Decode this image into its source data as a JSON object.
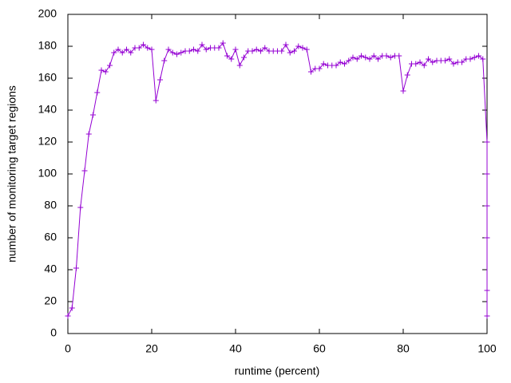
{
  "chart_data": {
    "type": "line",
    "xlabel": "runtime (percent)",
    "ylabel": "number of monitoring target regions",
    "x": [
      0,
      1,
      2,
      3,
      4,
      5,
      6,
      7,
      8,
      9,
      10,
      11,
      12,
      13,
      14,
      15,
      16,
      17,
      18,
      19,
      20,
      21,
      22,
      23,
      24,
      25,
      26,
      27,
      28,
      29,
      30,
      31,
      32,
      33,
      34,
      35,
      36,
      37,
      38,
      39,
      40,
      41,
      42,
      43,
      44,
      45,
      46,
      47,
      48,
      49,
      50,
      51,
      52,
      53,
      54,
      55,
      56,
      57,
      58,
      59,
      60,
      61,
      62,
      63,
      64,
      65,
      66,
      67,
      68,
      69,
      70,
      71,
      72,
      73,
      74,
      75,
      76,
      77,
      78,
      79,
      80,
      81,
      82,
      83,
      84,
      85,
      86,
      87,
      88,
      89,
      90,
      91,
      92,
      93,
      94,
      95,
      96,
      97,
      98,
      99,
      100,
      100,
      100,
      100,
      100,
      100
    ],
    "series": [
      {
        "color": "#9400d3",
        "values": [
          11,
          16,
          41,
          79,
          102,
          125,
          137,
          151,
          165,
          164,
          168,
          176,
          178,
          176,
          178,
          176,
          179,
          179,
          181,
          179,
          178,
          146,
          159,
          171,
          178,
          176,
          175,
          176,
          177,
          177,
          178,
          177,
          181,
          178,
          179,
          179,
          179,
          182,
          174,
          172,
          178,
          168,
          173,
          177,
          177,
          178,
          177,
          179,
          177,
          177,
          177,
          177,
          181,
          176,
          177,
          180,
          179,
          178,
          164,
          166,
          166,
          169,
          168,
          168,
          168,
          170,
          169,
          171,
          173,
          172,
          174,
          173,
          172,
          174,
          172,
          174,
          174,
          173,
          174,
          174,
          152,
          162,
          169,
          169,
          170,
          168,
          172,
          170,
          171,
          171,
          171,
          172,
          169,
          170,
          170,
          172,
          172,
          173,
          174,
          172,
          120,
          100,
          80,
          60,
          27,
          11
        ]
      }
    ],
    "xlim": [
      0,
      100
    ],
    "xticks": [
      0,
      20,
      40,
      60,
      80,
      100
    ],
    "ylim": [
      0,
      200
    ],
    "yticks": [
      0,
      20,
      40,
      60,
      80,
      100,
      120,
      140,
      160,
      180,
      200
    ],
    "marker": "+",
    "grid": false
  }
}
